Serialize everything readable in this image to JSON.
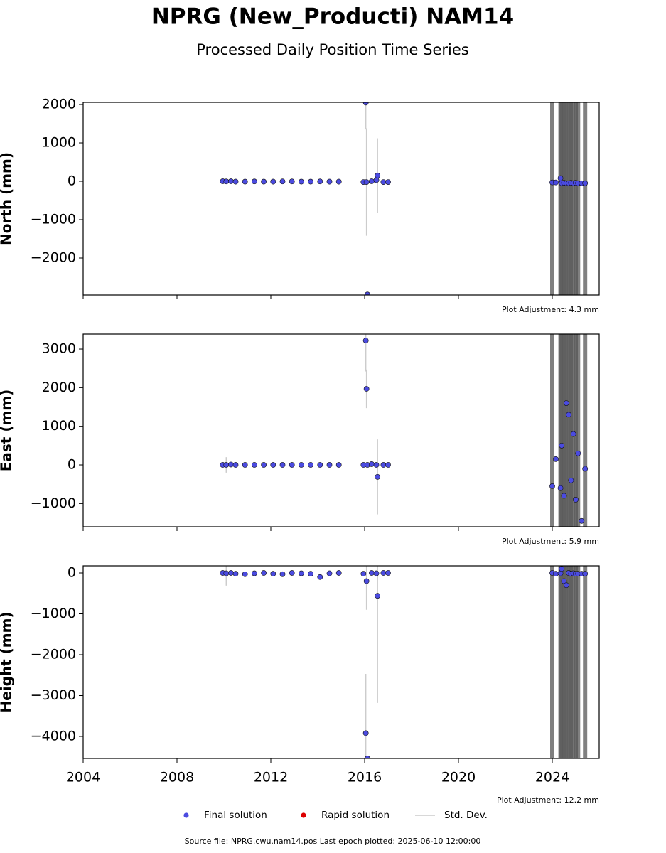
{
  "title": "NPRG (New_Producti) NAM14",
  "subtitle": "Processed Daily Position Time Series",
  "footer": "Source file: NPRG.cwu.nam14.pos  Last epoch plotted: 2025-06-10 12:00:00",
  "legend": [
    {
      "label": "Final solution",
      "color": "#4b4be0"
    },
    {
      "label": "Rapid solution",
      "color": "#dd0000"
    },
    {
      "label": "Std. Dev.",
      "color": "#cccccc"
    }
  ],
  "chart_data": [
    {
      "type": "scatter",
      "y_label": "North (mm)",
      "annotation": "Plot Adjustment: 4.3 mm",
      "ylim": [
        -2963,
        2056
      ],
      "yticks": [
        {
          "value": -2000,
          "label": "−2000"
        },
        {
          "value": -1000,
          "label": "−1000"
        },
        0,
        1000,
        2000
      ],
      "series": [
        {
          "name": "Final solution",
          "color": "#4b4be0",
          "x": [
            2009.95,
            2010.1,
            2010.3,
            2010.5,
            2010.9,
            2011.3,
            2011.7,
            2012.1,
            2012.5,
            2012.9,
            2013.3,
            2013.7,
            2014.1,
            2014.5,
            2014.9,
            2015.95,
            2016.05,
            2016.08,
            2016.12,
            2016.3,
            2016.5,
            2016.55,
            2016.8,
            2017.0,
            2024.0,
            2024.15,
            2024.35,
            2024.4,
            2024.5,
            2024.6,
            2024.7,
            2024.8,
            2024.9,
            2025.0,
            2025.1,
            2025.25,
            2025.4
          ],
          "values": [
            0,
            -5,
            0,
            -10,
            -10,
            -5,
            -10,
            -10,
            -5,
            -5,
            -10,
            -10,
            -5,
            -10,
            -10,
            -20,
            2050,
            -20,
            -2950,
            0,
            30,
            150,
            -20,
            -20,
            -30,
            -30,
            80,
            -50,
            -40,
            -50,
            -50,
            -40,
            -50,
            -40,
            -50,
            -50,
            -50
          ],
          "errors": [
            5,
            5,
            5,
            5,
            5,
            5,
            5,
            5,
            5,
            5,
            5,
            5,
            5,
            5,
            5,
            5,
            700,
            1400,
            5,
            5,
            5,
            970,
            5,
            5,
            6000,
            5,
            6000,
            6000,
            6000,
            6000,
            6000,
            6000,
            6000,
            6000,
            6000,
            5,
            6000
          ]
        }
      ]
    },
    {
      "type": "scatter",
      "y_label": "East (mm)",
      "annotation": "Plot Adjustment: 5.9 mm",
      "ylim": [
        -1601,
        3387
      ],
      "yticks": [
        {
          "value": -1000,
          "label": "−1000"
        },
        0,
        1000,
        2000,
        3000
      ],
      "series": [
        {
          "name": "Final solution",
          "color": "#4b4be0",
          "x": [
            2009.95,
            2010.1,
            2010.3,
            2010.5,
            2010.9,
            2011.3,
            2011.7,
            2012.1,
            2012.5,
            2012.9,
            2013.3,
            2013.7,
            2014.1,
            2014.5,
            2014.9,
            2015.95,
            2016.05,
            2016.08,
            2016.12,
            2016.3,
            2016.5,
            2016.55,
            2016.8,
            2017.0,
            2024.0,
            2024.15,
            2024.35,
            2024.4,
            2024.5,
            2024.6,
            2024.7,
            2024.8,
            2024.9,
            2025.0,
            2025.1,
            2025.25,
            2025.4
          ],
          "values": [
            0,
            0,
            10,
            0,
            0,
            0,
            0,
            0,
            0,
            0,
            0,
            0,
            0,
            0,
            0,
            0,
            3220,
            1970,
            0,
            20,
            0,
            -310,
            0,
            0,
            -550,
            150,
            -600,
            500,
            -800,
            1600,
            1300,
            -400,
            800,
            -900,
            300,
            -1450,
            -100
          ],
          "errors": [
            5,
            200,
            5,
            5,
            5,
            5,
            5,
            5,
            5,
            5,
            5,
            5,
            5,
            5,
            5,
            5,
            800,
            500,
            5,
            5,
            5,
            970,
            5,
            5,
            6000,
            5,
            6000,
            6000,
            6000,
            6000,
            6000,
            6000,
            6000,
            6000,
            6000,
            5,
            6000
          ]
        }
      ]
    },
    {
      "type": "scatter",
      "y_label": "Height (mm)",
      "annotation": "Plot Adjustment: 12.2 mm",
      "xlim": [
        2004,
        2026
      ],
      "xticks": [
        2004,
        2008,
        2012,
        2016,
        2020,
        2024
      ],
      "ylim": [
        -4539,
        174
      ],
      "yticks": [
        {
          "value": -4000,
          "label": "−4000"
        },
        {
          "value": -3000,
          "label": "−3000"
        },
        {
          "value": -2000,
          "label": "−2000"
        },
        {
          "value": -1000,
          "label": "−1000"
        },
        0
      ],
      "series": [
        {
          "name": "Final solution",
          "color": "#4b4be0",
          "x": [
            2009.95,
            2010.1,
            2010.3,
            2010.5,
            2010.9,
            2011.3,
            2011.7,
            2012.1,
            2012.5,
            2012.9,
            2013.3,
            2013.7,
            2014.1,
            2014.5,
            2014.9,
            2015.95,
            2016.05,
            2016.08,
            2016.12,
            2016.3,
            2016.5,
            2016.55,
            2016.8,
            2017.0,
            2024.0,
            2024.15,
            2024.35,
            2024.4,
            2024.5,
            2024.6,
            2024.7,
            2024.8,
            2024.9,
            2025.0,
            2025.1,
            2025.25,
            2025.4
          ],
          "values": [
            0,
            -10,
            0,
            -20,
            -30,
            -10,
            0,
            -20,
            -30,
            0,
            -10,
            -20,
            -100,
            -10,
            0,
            -20,
            -3920,
            -200,
            -4540,
            0,
            -10,
            -560,
            0,
            0,
            0,
            -20,
            -10,
            100,
            -200,
            -300,
            0,
            -20,
            -10,
            -20,
            -20,
            -20,
            -20
          ],
          "errors": [
            5,
            300,
            5,
            5,
            5,
            5,
            5,
            5,
            5,
            5,
            5,
            5,
            5,
            5,
            5,
            5,
            1450,
            700,
            5,
            5,
            5,
            2620,
            5,
            5,
            6000,
            5,
            6000,
            6000,
            6000,
            6000,
            6000,
            6000,
            6000,
            6000,
            6000,
            5,
            6000
          ]
        }
      ]
    }
  ]
}
